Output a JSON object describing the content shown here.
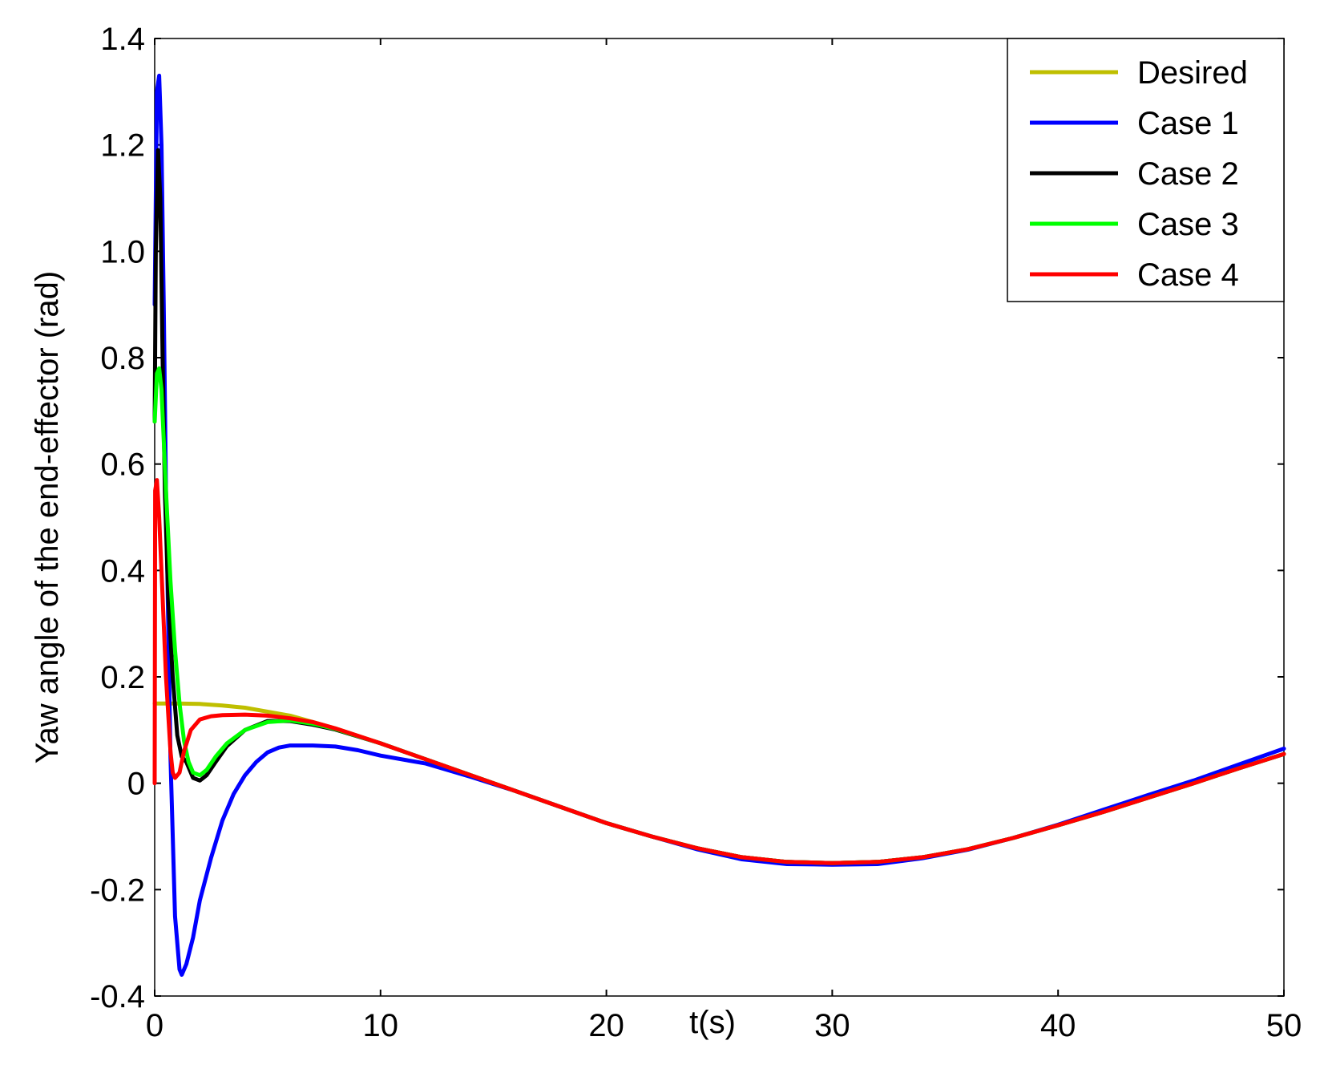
{
  "chart_data": {
    "type": "line",
    "title": "",
    "xlabel": "t(s)",
    "ylabel": "Yaw angle of the end-effector (rad)",
    "xlim": [
      0,
      50
    ],
    "ylim": [
      -0.4,
      1.4
    ],
    "xticks": [
      0,
      10,
      20,
      30,
      40,
      50
    ],
    "xtick_labels": [
      "0",
      "10",
      "20",
      "30",
      "40",
      "50"
    ],
    "yticks": [
      -0.4,
      -0.2,
      0,
      0.2,
      0.4,
      0.6,
      0.8,
      1.0,
      1.2,
      1.4
    ],
    "ytick_labels": [
      "-0.4",
      "-0.2",
      "0",
      "0.2",
      "0.4",
      "0.6",
      "0.8",
      "1.0",
      "1.2",
      "1.4"
    ],
    "grid": false,
    "legend_position": "top-right",
    "series": [
      {
        "name": "Desired",
        "color": "#bfbf00",
        "x": [
          0,
          1,
          2,
          3,
          4,
          6,
          8,
          10,
          12,
          14,
          16,
          18,
          20,
          22,
          24,
          26,
          28,
          30,
          32,
          34,
          36,
          38,
          40,
          42,
          44,
          46,
          48,
          50
        ],
        "y": [
          0.15,
          0.15,
          0.149,
          0.146,
          0.142,
          0.127,
          0.103,
          0.075,
          0.045,
          0.015,
          -0.015,
          -0.045,
          -0.075,
          -0.1,
          -0.122,
          -0.139,
          -0.148,
          -0.15,
          -0.148,
          -0.139,
          -0.124,
          -0.103,
          -0.079,
          -0.054,
          -0.027,
          0.0,
          0.028,
          0.055
        ]
      },
      {
        "name": "Case 1",
        "color": "#0000ff",
        "x": [
          0,
          0.1,
          0.2,
          0.3,
          0.4,
          0.5,
          0.7,
          0.9,
          1.1,
          1.2,
          1.4,
          1.7,
          2.0,
          2.5,
          3.0,
          3.5,
          4.0,
          4.5,
          5.0,
          5.5,
          6.0,
          7.0,
          8.0,
          9.0,
          10,
          12,
          14,
          16,
          18,
          20,
          22,
          24,
          26,
          28,
          30,
          32,
          34,
          36,
          38,
          40,
          42,
          44,
          46,
          48,
          50
        ],
        "y": [
          0.9,
          1.3,
          1.33,
          1.2,
          0.9,
          0.55,
          0.05,
          -0.25,
          -0.35,
          -0.36,
          -0.34,
          -0.29,
          -0.22,
          -0.14,
          -0.07,
          -0.02,
          0.015,
          0.04,
          0.058,
          0.067,
          0.071,
          0.071,
          0.069,
          0.062,
          0.052,
          0.037,
          0.012,
          -0.015,
          -0.045,
          -0.075,
          -0.1,
          -0.124,
          -0.143,
          -0.152,
          -0.153,
          -0.152,
          -0.141,
          -0.125,
          -0.103,
          -0.078,
          -0.05,
          -0.022,
          0.005,
          0.035,
          0.065
        ]
      },
      {
        "name": "Case 2",
        "color": "#000000",
        "x": [
          0,
          0.05,
          0.15,
          0.25,
          0.35,
          0.45,
          0.6,
          0.8,
          1.0,
          1.2,
          1.4,
          1.7,
          2.0,
          2.3,
          2.7,
          3.2,
          4.0,
          5.0,
          6.0,
          7.0,
          8.0,
          10,
          12,
          14,
          16,
          18,
          20,
          22,
          24,
          26,
          28,
          30,
          32,
          34,
          36,
          38,
          40,
          42,
          44,
          46,
          48,
          50
        ],
        "y": [
          0.68,
          1.0,
          1.19,
          1.1,
          0.8,
          0.55,
          0.35,
          0.2,
          0.09,
          0.05,
          0.04,
          0.01,
          0.005,
          0.015,
          0.04,
          0.07,
          0.1,
          0.117,
          0.117,
          0.11,
          0.101,
          0.075,
          0.045,
          0.015,
          -0.015,
          -0.045,
          -0.075,
          -0.1,
          -0.122,
          -0.139,
          -0.148,
          -0.15,
          -0.148,
          -0.139,
          -0.124,
          -0.103,
          -0.079,
          -0.054,
          -0.027,
          0.0,
          0.028,
          0.055
        ]
      },
      {
        "name": "Case 3",
        "color": "#00ff00",
        "x": [
          0,
          0.1,
          0.2,
          0.3,
          0.5,
          0.7,
          0.9,
          1.1,
          1.3,
          1.5,
          1.7,
          2.0,
          2.3,
          2.7,
          3.2,
          4.0,
          5.0,
          6.0,
          7.0,
          8.0,
          10,
          12,
          14,
          16,
          18,
          20,
          22,
          24,
          26,
          28,
          30,
          32,
          34,
          36,
          38,
          40,
          42,
          44,
          46,
          48,
          50
        ],
        "y": [
          0.68,
          0.77,
          0.78,
          0.74,
          0.55,
          0.38,
          0.25,
          0.15,
          0.08,
          0.04,
          0.02,
          0.015,
          0.025,
          0.05,
          0.075,
          0.1,
          0.115,
          0.118,
          0.112,
          0.102,
          0.075,
          0.045,
          0.015,
          -0.015,
          -0.045,
          -0.075,
          -0.1,
          -0.122,
          -0.139,
          -0.148,
          -0.15,
          -0.148,
          -0.139,
          -0.124,
          -0.103,
          -0.079,
          -0.054,
          -0.027,
          0.0,
          0.028,
          0.055
        ]
      },
      {
        "name": "Case 4",
        "color": "#ff0000",
        "x": [
          0,
          0.02,
          0.1,
          0.2,
          0.35,
          0.5,
          0.7,
          0.8,
          0.9,
          1.0,
          1.1,
          1.3,
          1.6,
          2.0,
          2.5,
          3.0,
          4.0,
          5.0,
          6.0,
          7.0,
          8.0,
          10,
          12,
          14,
          16,
          18,
          20,
          22,
          24,
          26,
          28,
          30,
          32,
          34,
          36,
          38,
          40,
          42,
          44,
          46,
          48,
          50
        ],
        "y": [
          0.0,
          0.55,
          0.57,
          0.5,
          0.35,
          0.2,
          0.06,
          0.02,
          0.01,
          0.015,
          0.02,
          0.06,
          0.1,
          0.12,
          0.126,
          0.128,
          0.129,
          0.127,
          0.122,
          0.115,
          0.103,
          0.075,
          0.045,
          0.015,
          -0.015,
          -0.045,
          -0.075,
          -0.1,
          -0.122,
          -0.139,
          -0.148,
          -0.15,
          -0.148,
          -0.139,
          -0.124,
          -0.103,
          -0.079,
          -0.054,
          -0.027,
          0.0,
          0.028,
          0.055
        ]
      }
    ]
  }
}
